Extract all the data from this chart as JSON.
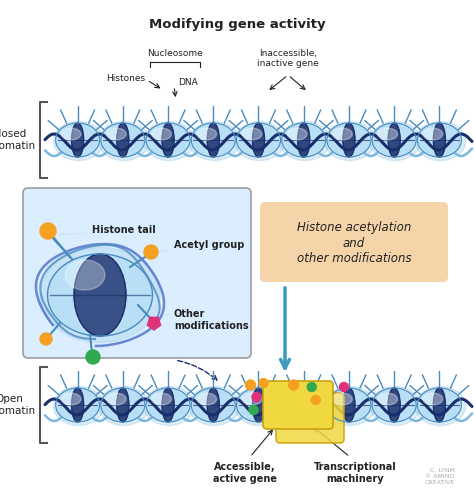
{
  "title": "Modifying gene activity",
  "title_fontsize": 9.5,
  "title_fontweight": "bold",
  "bg_color": "#ffffff",
  "label_nucleosome": "Nucleosome",
  "label_histones": "Histones",
  "label_dna": "DNA",
  "label_inaccessible": "Inaccessible,\ninactive gene",
  "label_closed_chromatin": "Closed\nchromatin",
  "label_histone_tail": "Histone tail",
  "label_acetyl_group": "Acetyl group",
  "label_other_mod": "Other\nmodifications",
  "label_histone_acetylation": "Histone acetylation\nand\nother modifications",
  "label_open_chromatin": "Open\nchromatin",
  "label_accessible": "Accessible,\nactive gene",
  "label_transcriptional": "Transcriptional\nmachinery",
  "label_credit": "C. LYNM\n© AMINO\nCREATIVE",
  "dna_dark": "#1a2e6b",
  "dna_mid": "#3a5bbf",
  "nuc_light": "#b8dff5",
  "nuc_mid": "#7ab8e0",
  "nuc_dark": "#1a2e6b",
  "nuc_outline": "#4a8bbf",
  "orange": "#f5a020",
  "pink": "#e0307a",
  "green": "#30aa50",
  "arrow_c": "#3a9bbf",
  "acet_bg": "#f5d0a0",
  "box_bg": "#d8eeff",
  "box_outline": "#999999",
  "machinery": "#f0d840",
  "machinery_outline": "#c8a010",
  "bracket": "#555555",
  "text_c": "#222222",
  "figw": 4.74,
  "figh": 4.99,
  "dpi": 100
}
